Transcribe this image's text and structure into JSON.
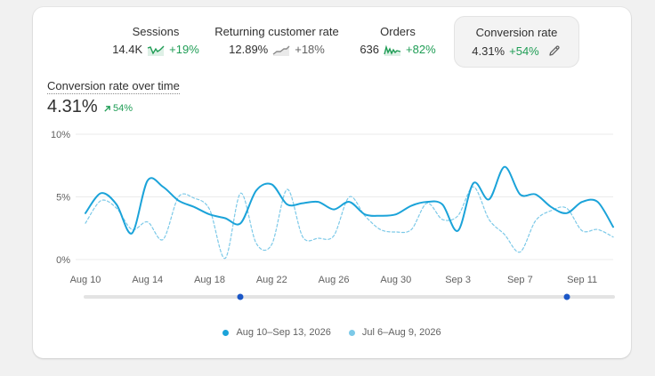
{
  "metrics": [
    {
      "title": "Sessions",
      "value": "14.4K",
      "change": "+19%",
      "trend": "up",
      "spark": "sessions-sparkline-icon"
    },
    {
      "title": "Returning customer rate",
      "value": "12.89%",
      "change": "+18%",
      "trend": "neutral",
      "spark": "returning-rate-sparkline-icon"
    },
    {
      "title": "Orders",
      "value": "636",
      "change": "+82%",
      "trend": "up",
      "spark": "orders-sparkline-icon"
    },
    {
      "title": "Conversion rate",
      "value": "4.31%",
      "change": "+54%",
      "trend": "up",
      "selected": true,
      "icon": "pencil-edit-icon"
    }
  ],
  "chart": {
    "title": "Conversion rate over time",
    "value": "4.31%",
    "change": "54%",
    "change_icon": "arrow-up-right-icon"
  },
  "colors": {
    "primary_line": "#1ba3d9",
    "comparison_line": "#7cc9e8",
    "positive": "#1f9d55",
    "grid": "#ebebeb",
    "scrubber_handle": "#1b57c7"
  },
  "legend": {
    "current": "Aug 10–Sep 13, 2026",
    "previous": "Jul 6–Aug 9, 2026"
  },
  "chart_data": {
    "type": "line",
    "ylabel": "",
    "xlabel": "",
    "y_ticks": [
      "10%",
      "5%",
      "0%"
    ],
    "y_tick_values": [
      10,
      5,
      0
    ],
    "ylim": [
      0,
      10
    ],
    "x_tick_labels": [
      "Aug 10",
      "Aug 14",
      "Aug 18",
      "Aug 22",
      "Aug 26",
      "Aug 30",
      "Sep 3",
      "Sep 7",
      "Sep 11"
    ],
    "x_tick_index": [
      0,
      4,
      8,
      12,
      16,
      20,
      24,
      28,
      32
    ],
    "x_count": 35,
    "grid": true,
    "legend_position": "bottom-center",
    "series": [
      {
        "name": "Aug 10–Sep 13, 2026",
        "style": "solid",
        "values": [
          3.7,
          5.3,
          4.4,
          2.1,
          6.3,
          5.8,
          4.7,
          4.2,
          3.6,
          3.3,
          2.9,
          5.5,
          6.0,
          4.4,
          4.5,
          4.6,
          4.0,
          4.6,
          3.6,
          3.5,
          3.6,
          4.3,
          4.6,
          4.4,
          2.3,
          6.1,
          4.8,
          7.4,
          5.2,
          5.2,
          4.2,
          3.7,
          4.6,
          4.6,
          2.6
        ]
      },
      {
        "name": "Jul 6–Aug 9, 2026",
        "style": "dashed",
        "values": [
          2.9,
          4.7,
          4.1,
          2.4,
          3.0,
          1.6,
          5.0,
          4.9,
          4.0,
          0.1,
          5.3,
          1.3,
          1.2,
          5.6,
          1.8,
          1.7,
          1.9,
          5.0,
          3.5,
          2.4,
          2.2,
          2.4,
          4.5,
          3.2,
          3.5,
          5.8,
          3.2,
          2.0,
          0.6,
          3.1,
          3.9,
          4.1,
          2.3,
          2.4,
          1.8
        ]
      }
    ]
  }
}
